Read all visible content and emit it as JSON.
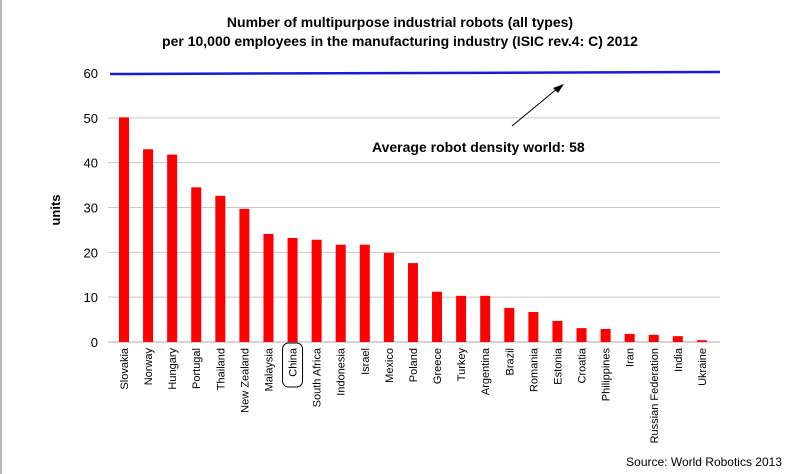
{
  "chart_data": {
    "type": "bar",
    "title_line1": "Number of multipurpose industrial robots (all types)",
    "title_line2": "per 10,000 employees in the manufacturing industry (ISIC rev.4: C) 2012",
    "xlabel": "",
    "ylabel": "units",
    "ylim": [
      0,
      60
    ],
    "yticks": [
      0,
      10,
      20,
      30,
      40,
      50,
      60
    ],
    "grid": true,
    "categories": [
      "Slovakia",
      "Norway",
      "Hungary",
      "Portugal",
      "Thailand",
      "New Zealand",
      "Malaysia",
      "China",
      "South Africa",
      "Indonesia",
      "Israel",
      "Mexico",
      "Poland",
      "Greece",
      "Turkey",
      "Argentina",
      "Brazil",
      "Romania",
      "Estonia",
      "Croatia",
      "Philippines",
      "Iran",
      "Russian Federation",
      "India",
      "Ukraine"
    ],
    "values": [
      50.1,
      43.0,
      41.8,
      34.5,
      32.6,
      29.7,
      24.1,
      23.2,
      22.8,
      21.7,
      21.7,
      19.9,
      17.6,
      11.2,
      10.3,
      10.3,
      7.6,
      6.7,
      4.7,
      3.1,
      2.9,
      1.8,
      1.6,
      1.3,
      0.4
    ],
    "highlighted_category": "China",
    "reference_line": {
      "value": 60,
      "color": "#1a1adb"
    },
    "annotation": "Average robot density world: 58",
    "bar_color": "#ff0000"
  },
  "source": "Source: World Robotics 2013"
}
